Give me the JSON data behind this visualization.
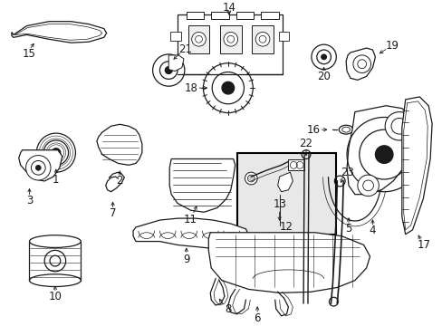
{
  "background_color": "#ffffff",
  "line_color": "#1a1a1a",
  "fig_width": 4.89,
  "fig_height": 3.6,
  "dpi": 100,
  "font_size": 8.5,
  "lw": 0.9
}
